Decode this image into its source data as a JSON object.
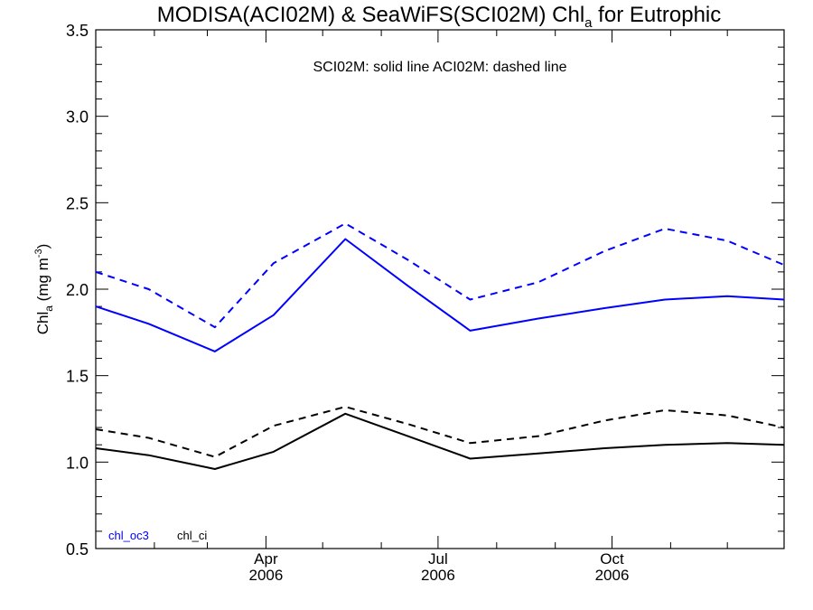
{
  "chart_data": {
    "type": "line",
    "title": {
      "main": "MODISA(ACI02M) & SeaWiFS(SCI02M)  Chl",
      "sub": "a",
      "tail": " for Eutrophic"
    },
    "annotation": "SCI02M: solid line   ACI02M: dashed line",
    "ylabel": {
      "main": "Chl",
      "sub": "a",
      "unit_start": " (mg m",
      "unit_sup": "-3",
      "unit_end": ")"
    },
    "ylim": [
      0.5,
      3.5
    ],
    "yticks": [
      "0.5",
      "1.0",
      "1.5",
      "2.0",
      "2.5",
      "3.0",
      "3.5"
    ],
    "xrange": [
      "2006-01-01",
      "2006-12-31"
    ],
    "xticks": [
      {
        "month": "Apr",
        "year": "2006",
        "date": "2006-04-01"
      },
      {
        "month": "Jul",
        "year": "2006",
        "date": "2006-07-01"
      },
      {
        "month": "Oct",
        "year": "2006",
        "date": "2006-10-01"
      }
    ],
    "minor_ticks": [
      "2006-02-01",
      "2006-03-01",
      "2006-05-01",
      "2006-06-01",
      "2006-08-01",
      "2006-09-01",
      "2006-11-01",
      "2006-12-01"
    ],
    "x": [
      "2006-01-01",
      "2006-01-29",
      "2006-03-05",
      "2006-04-05",
      "2006-05-13",
      "2006-06-15",
      "2006-07-18",
      "2006-08-23",
      "2006-09-27",
      "2006-10-29",
      "2006-12-01",
      "2006-12-31"
    ],
    "series": [
      {
        "name": "chl_oc3",
        "dash": false,
        "color": "#0000ff",
        "values": [
          1.9,
          1.8,
          1.64,
          1.85,
          2.29,
          2.02,
          1.76,
          1.83,
          1.89,
          1.94,
          1.96,
          1.94
        ]
      },
      {
        "name": "chl_oc3",
        "dash": true,
        "color": "#0000ff",
        "values": [
          2.1,
          2.0,
          1.78,
          2.15,
          2.38,
          2.17,
          1.94,
          2.04,
          2.22,
          2.35,
          2.28,
          2.14
        ]
      },
      {
        "name": "chl_ci",
        "dash": false,
        "color": "#000000",
        "values": [
          1.08,
          1.04,
          0.96,
          1.06,
          1.28,
          1.15,
          1.02,
          1.05,
          1.08,
          1.1,
          1.11,
          1.1
        ]
      },
      {
        "name": "chl_ci",
        "dash": true,
        "color": "#000000",
        "values": [
          1.19,
          1.14,
          1.03,
          1.21,
          1.32,
          1.22,
          1.11,
          1.15,
          1.24,
          1.3,
          1.27,
          1.2
        ]
      }
    ],
    "legend": [
      {
        "label": "chl_oc3",
        "color": "#0000ff"
      },
      {
        "label": "chl_ci",
        "color": "#000000"
      }
    ],
    "legend_position": "bottom-left",
    "grid": false
  }
}
